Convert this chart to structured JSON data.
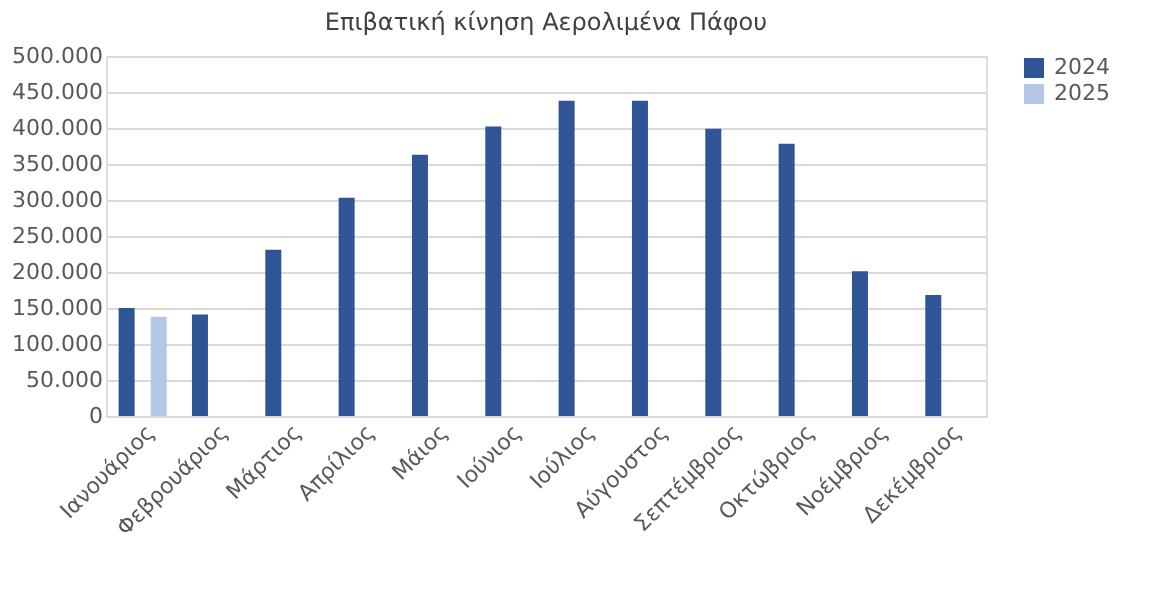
{
  "chart_data": {
    "type": "bar",
    "title": "Επιβατική κίνηση Αερολιμένα Πάφου",
    "categories": [
      "Ιανουάριος",
      "Φεβρουάριος",
      "Μάρτιος",
      "Απρίλιος",
      "Μάιος",
      "Ιούνιος",
      "Ιούλιος",
      "Αύγουστος",
      "Σεπτέμβριος",
      "Οκτώβριος",
      "Νοέμβριος",
      "Δεκέμβριος"
    ],
    "series": [
      {
        "name": "2024",
        "color": "#2f5597",
        "values": [
          150000,
          141000,
          231000,
          303000,
          363000,
          402000,
          438000,
          438000,
          399000,
          378000,
          201000,
          168000
        ]
      },
      {
        "name": "2025",
        "color": "#b4c7e7",
        "values": [
          138000,
          null,
          null,
          null,
          null,
          null,
          null,
          null,
          null,
          null,
          null,
          null
        ]
      }
    ],
    "ylim": [
      0,
      500000
    ],
    "yticks": [
      {
        "value": 0,
        "label": "0"
      },
      {
        "value": 50000,
        "label": "50.000"
      },
      {
        "value": 100000,
        "label": "100.000"
      },
      {
        "value": 150000,
        "label": "150.000"
      },
      {
        "value": 200000,
        "label": "200.000"
      },
      {
        "value": 250000,
        "label": "250.000"
      },
      {
        "value": 300000,
        "label": "300.000"
      },
      {
        "value": 350000,
        "label": "350.000"
      },
      {
        "value": 400000,
        "label": "400.000"
      },
      {
        "value": 450000,
        "label": "450.000"
      },
      {
        "value": 500000,
        "label": "500.000"
      }
    ],
    "grid": "y",
    "legend": "right"
  }
}
